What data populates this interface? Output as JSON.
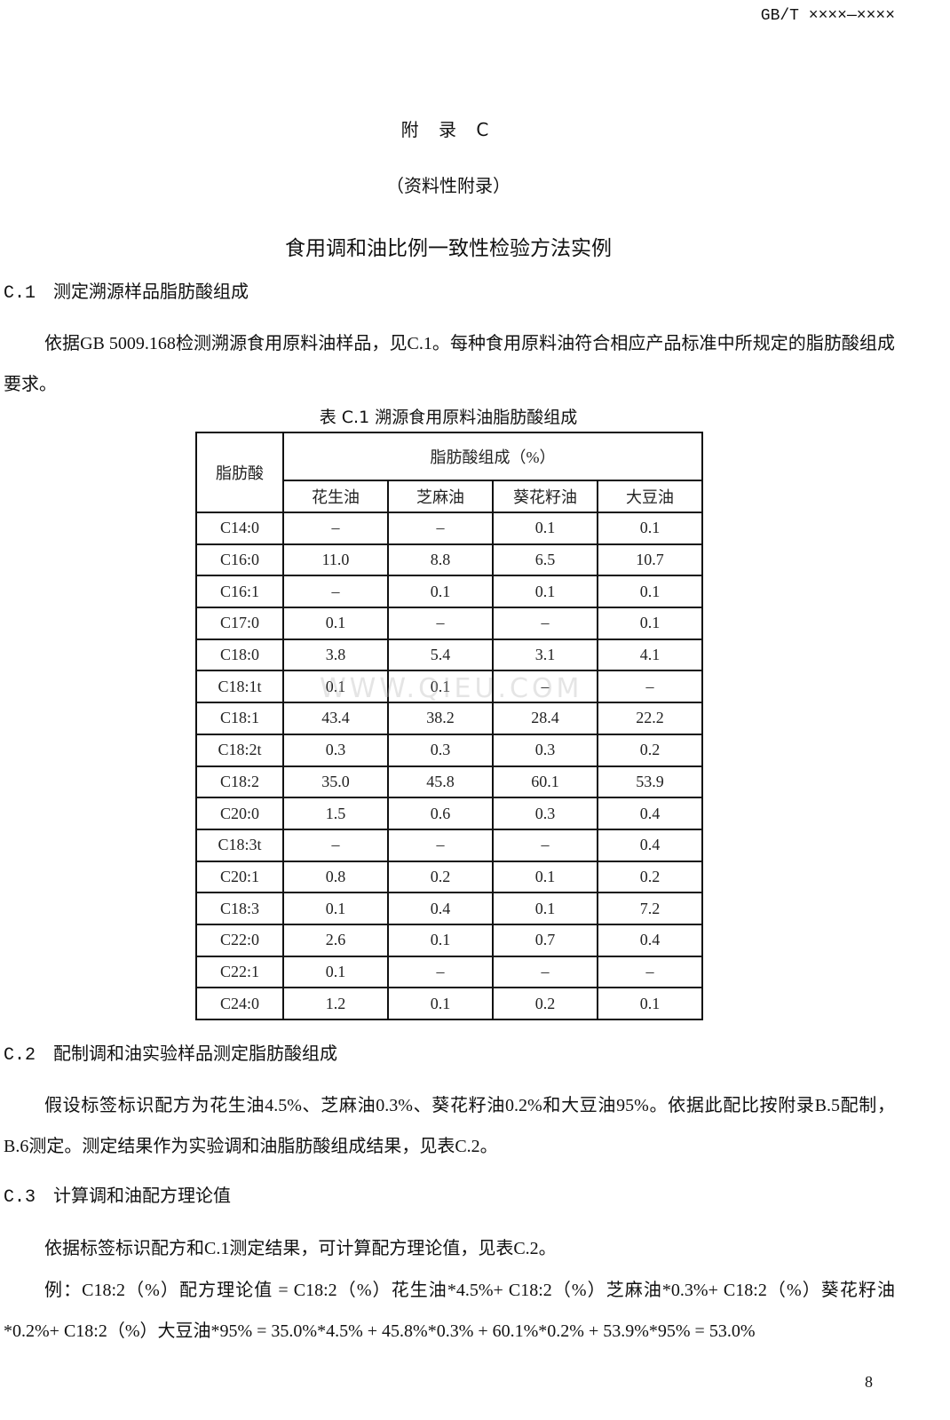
{
  "header": {
    "standard_code": "GB/T ××××—××××"
  },
  "appendix": {
    "title": "附 录 C",
    "type": "（资料性附录）",
    "heading": "食用调和油比例一致性检验方法实例"
  },
  "sections": [
    {
      "number": "C.1",
      "title": "测定溯源样品脂肪酸组成",
      "paragraphs": [
        "依据GB 5009.168检测溯源食用原料油样品，见C.1。每种食用原料油符合相应产品标准中所规定的脂肪酸组成要求。"
      ]
    },
    {
      "number": "C.2",
      "title": "配制调和油实验样品测定脂肪酸组成",
      "paragraphs": [
        "假设标签标识配方为花生油4.5%、芝麻油0.3%、葵花籽油0.2%和大豆油95%。依据此配比按附录B.5配制，B.6测定。测定结果作为实验调和油脂肪酸组成结果，见表C.2。"
      ]
    },
    {
      "number": "C.3",
      "title": "计算调和油配方理论值",
      "paragraphs": [
        "依据标签标识配方和C.1测定结果，可计算配方理论值，见表C.2。",
        "例：C18:2（%）配方理论值 = C18:2（%）花生油*4.5%+ C18:2（%）芝麻油*0.3%+ C18:2（%）葵花籽油*0.2%+ C18:2（%）大豆油*95% = 35.0%*4.5% + 45.8%*0.3% + 60.1%*0.2% + 53.9%*95% = 53.0%"
      ]
    }
  ],
  "table": {
    "caption": "表 C.1 溯源食用原料油脂肪酸组成",
    "row_header": "脂肪酸",
    "group_header": "脂肪酸组成（%）",
    "columns": [
      "花生油",
      "芝麻油",
      "葵花籽油",
      "大豆油"
    ],
    "rows": [
      [
        "C14:0",
        "–",
        "–",
        "0.1",
        "0.1"
      ],
      [
        "C16:0",
        "11.0",
        "8.8",
        "6.5",
        "10.7"
      ],
      [
        "C16:1",
        "–",
        "0.1",
        "0.1",
        "0.1"
      ],
      [
        "C17:0",
        "0.1",
        "–",
        "–",
        "0.1"
      ],
      [
        "C18:0",
        "3.8",
        "5.4",
        "3.1",
        "4.1"
      ],
      [
        "C18:1t",
        "0.1",
        "0.1",
        "–",
        "–"
      ],
      [
        "C18:1",
        "43.4",
        "38.2",
        "28.4",
        "22.2"
      ],
      [
        "C18:2t",
        "0.3",
        "0.3",
        "0.3",
        "0.2"
      ],
      [
        "C18:2",
        "35.0",
        "45.8",
        "60.1",
        "53.9"
      ],
      [
        "C20:0",
        "1.5",
        "0.6",
        "0.3",
        "0.4"
      ],
      [
        "C18:3t",
        "–",
        "–",
        "–",
        "0.4"
      ],
      [
        "C20:1",
        "0.8",
        "0.2",
        "0.1",
        "0.2"
      ],
      [
        "C18:3",
        "0.1",
        "0.4",
        "0.1",
        "7.2"
      ],
      [
        "C22:0",
        "2.6",
        "0.1",
        "0.7",
        "0.4"
      ],
      [
        "C22:1",
        "0.1",
        "–",
        "–",
        "–"
      ],
      [
        "C24:0",
        "1.2",
        "0.1",
        "0.2",
        "0.1"
      ]
    ]
  },
  "watermark": "WWW.QIEU.COM",
  "page_number": "8"
}
